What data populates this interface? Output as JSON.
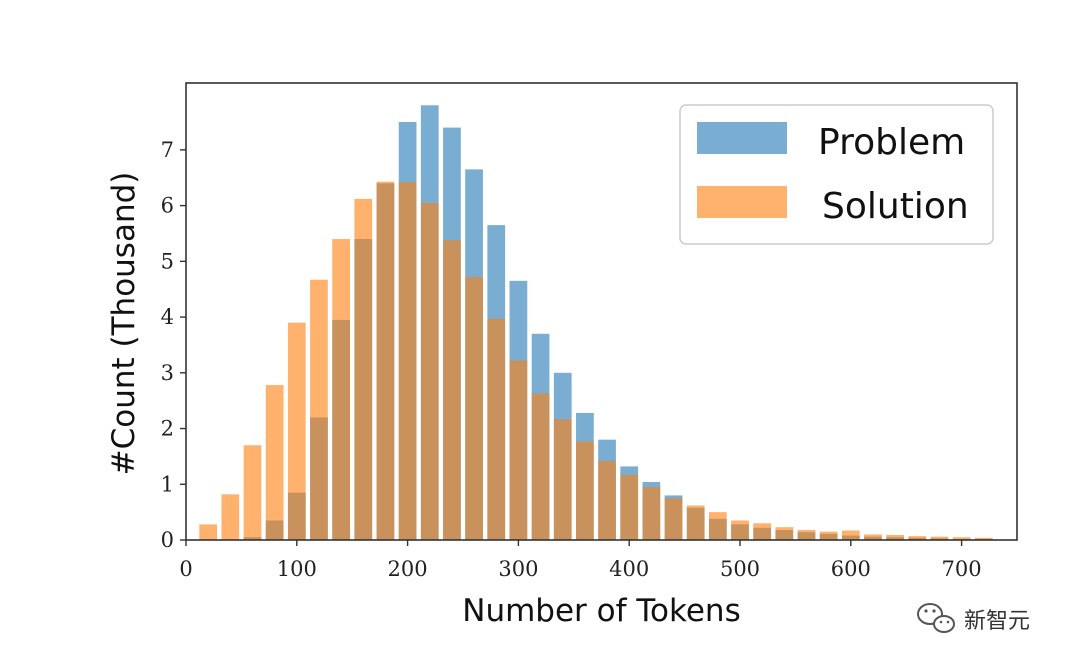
{
  "chart_data": {
    "type": "bar",
    "xlabel": "Number of Tokens",
    "ylabel": "#Count (Thousand)",
    "xlim": [
      0,
      750
    ],
    "ylim": [
      0,
      8.2
    ],
    "x_ticks": [
      0,
      100,
      200,
      300,
      400,
      500,
      600,
      700
    ],
    "y_ticks": [
      0,
      1,
      2,
      3,
      4,
      5,
      6,
      7
    ],
    "bin_width": 20,
    "legend_position": "top-right",
    "x": [
      20,
      40,
      60,
      80,
      100,
      120,
      140,
      160,
      180,
      200,
      220,
      240,
      260,
      280,
      300,
      320,
      340,
      360,
      380,
      400,
      420,
      440,
      460,
      480,
      500,
      520,
      540,
      560,
      580,
      600,
      620,
      640,
      660,
      680,
      700,
      720
    ],
    "series": [
      {
        "name": "Problem",
        "color": "#1f77b4",
        "values": [
          0,
          0,
          0.05,
          0.35,
          0.85,
          2.2,
          3.95,
          5.4,
          6.4,
          7.5,
          7.8,
          7.4,
          6.65,
          5.65,
          4.65,
          3.7,
          3.0,
          2.28,
          1.8,
          1.32,
          1.04,
          0.8,
          0.58,
          0.38,
          0.28,
          0.22,
          0.18,
          0.14,
          0.11,
          0.08,
          0.06,
          0.05,
          0.04,
          0.03,
          0.02,
          0.02
        ]
      },
      {
        "name": "Solution",
        "color": "#ff7f0e",
        "values": [
          0.28,
          0.82,
          1.7,
          2.78,
          3.9,
          4.67,
          5.4,
          6.12,
          6.43,
          6.42,
          6.05,
          5.38,
          4.72,
          3.97,
          3.22,
          2.63,
          2.17,
          1.77,
          1.42,
          1.17,
          0.95,
          0.75,
          0.62,
          0.5,
          0.35,
          0.3,
          0.23,
          0.18,
          0.15,
          0.17,
          0.1,
          0.09,
          0.07,
          0.06,
          0.05,
          0.04
        ]
      }
    ]
  },
  "watermark": {
    "text": "新智元",
    "icon": "wechat-icon"
  }
}
